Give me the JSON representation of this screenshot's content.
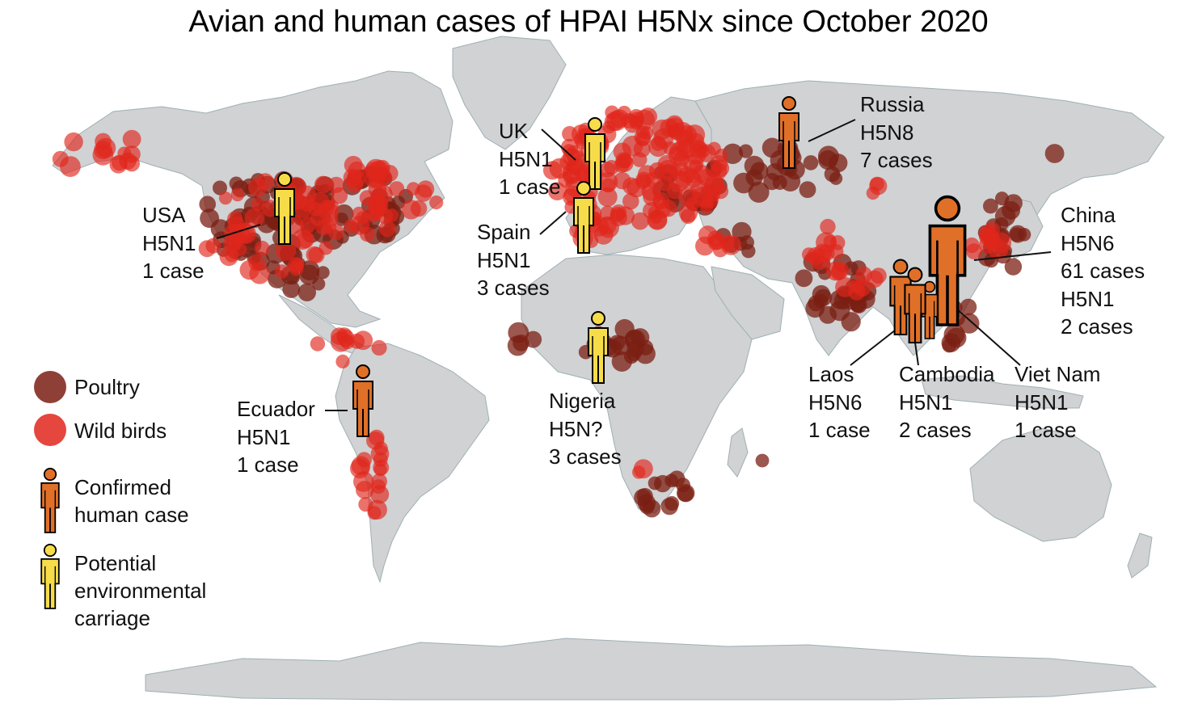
{
  "title": "Avian and human cases of HPAI H5Nx since October 2020",
  "colors": {
    "land": "#d0d2d4",
    "coast": "#9fb0b4",
    "poultry": "#7b1f13",
    "wild_birds": "#e0261c",
    "confirmed_human": "#e07028",
    "potential_environmental": "#f7dc4a"
  },
  "legend": {
    "poultry": "Poultry",
    "wild_birds": "Wild birds",
    "confirmed_line1": "Confirmed",
    "confirmed_line2": "human case",
    "potential_line1": "Potential",
    "potential_line2": "environmental",
    "potential_line3": "carriage"
  },
  "human_cases": [
    {
      "country": "USA",
      "subtype": "H5N1",
      "cases": "1 case",
      "kind": "potential"
    },
    {
      "country": "UK",
      "subtype": "H5N1",
      "cases": "1 case",
      "kind": "potential"
    },
    {
      "country": "Spain",
      "subtype": "H5N1",
      "cases": "3 cases",
      "kind": "potential"
    },
    {
      "country": "Russia",
      "subtype": "H5N8",
      "cases": "7 cases",
      "kind": "confirmed"
    },
    {
      "country": "China",
      "subtype": "H5N6",
      "cases": "61 cases",
      "subtype2": "H5N1",
      "cases2": "2 cases",
      "kind": "confirmed"
    },
    {
      "country": "Nigeria",
      "subtype": "H5N?",
      "cases": "3 cases",
      "kind": "potential"
    },
    {
      "country": "Ecuador",
      "subtype": "H5N1",
      "cases": "1 case",
      "kind": "confirmed"
    },
    {
      "country": "Laos",
      "subtype": "H5N6",
      "cases": "1 case",
      "kind": "confirmed"
    },
    {
      "country": "Cambodia",
      "subtype": "H5N1",
      "cases": "2 cases",
      "kind": "confirmed"
    },
    {
      "country": "Viet Nam",
      "subtype": "H5N1",
      "cases": "1 case",
      "kind": "confirmed"
    }
  ]
}
